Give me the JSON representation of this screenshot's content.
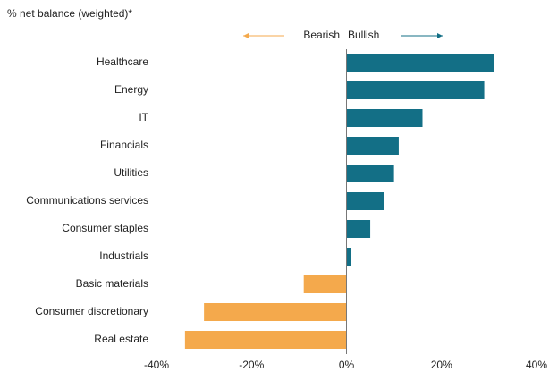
{
  "chart_data": {
    "type": "bar",
    "orientation": "horizontal",
    "title": "% net balance (weighted)*",
    "legend": [
      {
        "label": "Bearish",
        "color": "#f4a94c"
      },
      {
        "label": "Bullish",
        "color": "#136f86"
      }
    ],
    "categories": [
      "Healthcare",
      "Energy",
      "IT",
      "Financials",
      "Utilities",
      "Communications services",
      "Consumer staples",
      "Industrials",
      "Basic materials",
      "Consumer discretionary",
      "Real estate"
    ],
    "values": [
      31,
      29,
      16,
      11,
      10,
      8,
      5,
      1,
      -9,
      -30,
      -34
    ],
    "xlim": [
      -40,
      40
    ],
    "xticks": [
      {
        "value": -40,
        "label": "-40%"
      },
      {
        "value": -20,
        "label": "-20%"
      },
      {
        "value": 0,
        "label": "0%"
      },
      {
        "value": 20,
        "label": "20%"
      },
      {
        "value": 40,
        "label": "40%"
      }
    ],
    "grid": false
  }
}
